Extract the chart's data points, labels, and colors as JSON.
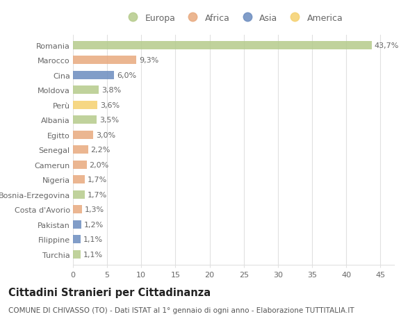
{
  "countries": [
    "Romania",
    "Marocco",
    "Cina",
    "Moldova",
    "Perù",
    "Albania",
    "Egitto",
    "Senegal",
    "Camerun",
    "Nigeria",
    "Bosnia-Erzegovina",
    "Costa d'Avorio",
    "Pakistan",
    "Filippine",
    "Turchia"
  ],
  "values": [
    43.7,
    9.3,
    6.0,
    3.8,
    3.6,
    3.5,
    3.0,
    2.2,
    2.0,
    1.7,
    1.7,
    1.3,
    1.2,
    1.1,
    1.1
  ],
  "labels": [
    "43,7%",
    "9,3%",
    "6,0%",
    "3,8%",
    "3,6%",
    "3,5%",
    "3,0%",
    "2,2%",
    "2,0%",
    "1,7%",
    "1,7%",
    "1,3%",
    "1,2%",
    "1,1%",
    "1,1%"
  ],
  "continents": [
    "Europa",
    "Africa",
    "Asia",
    "Europa",
    "America",
    "Europa",
    "Africa",
    "Africa",
    "Africa",
    "Africa",
    "Europa",
    "Africa",
    "Asia",
    "Asia",
    "Europa"
  ],
  "colors": {
    "Europa": "#b5cb8b",
    "Africa": "#e8a97e",
    "Asia": "#6b8cbf",
    "America": "#f5d06e"
  },
  "title": "Cittadini Stranieri per Cittadinanza",
  "subtitle": "COMUNE DI CHIVASSO (TO) - Dati ISTAT al 1° gennaio di ogni anno - Elaborazione TUTTITALIA.IT",
  "xlim": [
    0,
    47
  ],
  "xticks": [
    0,
    5,
    10,
    15,
    20,
    25,
    30,
    35,
    40,
    45
  ],
  "background_color": "#ffffff",
  "grid_color": "#e0e0e0",
  "label_fontsize": 8,
  "tick_fontsize": 8,
  "title_fontsize": 10.5,
  "subtitle_fontsize": 7.5
}
